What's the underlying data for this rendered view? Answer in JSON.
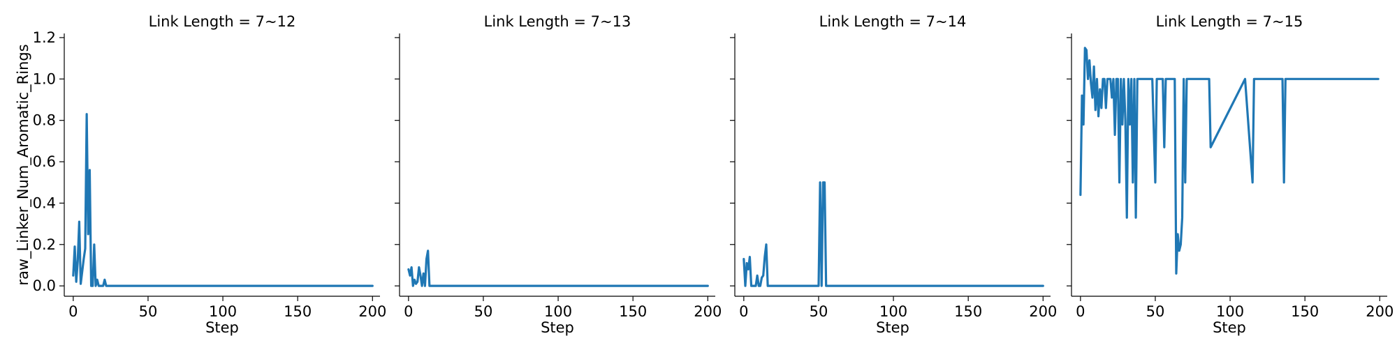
{
  "chart_data": {
    "type": "line",
    "ylabel": "raw_Linker_Num_Aromatic_Rings",
    "xlabel": "Step",
    "xlim": [
      -6,
      205
    ],
    "ylim": [
      -0.05,
      1.22
    ],
    "x_ticks": [
      0,
      50,
      100,
      150,
      200
    ],
    "y_ticks": [
      0.0,
      0.2,
      0.4,
      0.6,
      0.8,
      1.0,
      1.2
    ],
    "x_tick_labels": [
      "0",
      "50",
      "100",
      "150",
      "200"
    ],
    "y_tick_labels": [
      "0.0",
      "0.2",
      "0.4",
      "0.6",
      "0.8",
      "1.0",
      "1.2"
    ],
    "line_color": "#1f77b4",
    "grid": false,
    "legend": "none",
    "panels": [
      {
        "title": "Link Length = 7~12",
        "x": [
          0,
          1,
          2,
          3,
          4,
          5,
          6,
          7,
          8,
          9,
          10,
          11,
          12,
          13,
          14,
          15,
          16,
          17,
          18,
          19,
          20,
          21,
          22,
          23,
          24,
          25,
          26,
          200
        ],
        "y": [
          0.05,
          0.19,
          0.02,
          0.12,
          0.31,
          0.01,
          0.07,
          0.13,
          0.18,
          0.83,
          0.25,
          0.56,
          0.0,
          0.0,
          0.2,
          0.0,
          0.03,
          0.0,
          0.0,
          0.0,
          0.0,
          0.03,
          0.0,
          0.0,
          0.0,
          0.0,
          0.0,
          0.0
        ]
      },
      {
        "title": "Link Length = 7~13",
        "x": [
          0,
          1,
          2,
          3,
          4,
          5,
          6,
          7,
          8,
          9,
          10,
          11,
          12,
          13,
          14,
          15,
          200
        ],
        "y": [
          0.08,
          0.05,
          0.09,
          0.0,
          0.03,
          0.01,
          0.02,
          0.09,
          0.05,
          0.0,
          0.06,
          0.0,
          0.13,
          0.17,
          0.0,
          0.0,
          0.0
        ]
      },
      {
        "title": "Link Length = 7~14",
        "x": [
          0,
          1,
          2,
          3,
          4,
          5,
          6,
          7,
          8,
          9,
          10,
          11,
          12,
          13,
          14,
          15,
          16,
          17,
          50,
          51,
          52,
          53,
          54,
          55,
          200
        ],
        "y": [
          0.13,
          0.0,
          0.11,
          0.08,
          0.14,
          0.0,
          0.0,
          0.0,
          0.0,
          0.05,
          0.0,
          0.0,
          0.04,
          0.05,
          0.14,
          0.2,
          0.0,
          0.0,
          0.0,
          0.5,
          0.0,
          0.5,
          0.5,
          0.0,
          0.0
        ],
        "extra_note": ""
      },
      {
        "title": "Link Length = 7~15",
        "x": [
          0,
          1,
          2,
          3,
          4,
          5,
          6,
          7,
          8,
          9,
          10,
          11,
          12,
          13,
          14,
          15,
          16,
          17,
          18,
          19,
          20,
          21,
          22,
          23,
          24,
          25,
          26,
          27,
          28,
          29,
          30,
          31,
          32,
          33,
          34,
          35,
          36,
          37,
          38,
          39,
          40,
          41,
          45,
          48,
          50,
          51,
          52,
          53,
          55,
          56,
          57,
          60,
          63,
          64,
          65,
          66,
          67,
          68,
          69,
          70,
          71,
          80,
          86,
          87,
          110,
          115,
          116,
          135,
          136,
          137,
          199
        ],
        "y": [
          0.44,
          0.92,
          0.78,
          1.15,
          1.14,
          1.0,
          1.09,
          0.98,
          0.91,
          1.06,
          0.85,
          1.0,
          0.82,
          0.95,
          0.86,
          1.0,
          1.0,
          0.86,
          1.0,
          1.0,
          1.0,
          0.91,
          1.0,
          0.73,
          1.0,
          1.0,
          0.5,
          1.0,
          0.78,
          1.0,
          0.8,
          0.33,
          1.0,
          0.78,
          1.0,
          0.5,
          1.0,
          0.33,
          1.0,
          1.0,
          1.0,
          1.0,
          1.0,
          1.0,
          0.5,
          1.0,
          1.0,
          1.0,
          1.0,
          0.67,
          1.0,
          1.0,
          1.0,
          0.06,
          0.25,
          0.17,
          0.2,
          0.33,
          1.0,
          0.5,
          1.0,
          1.0,
          1.0,
          0.67,
          1.0,
          0.5,
          1.0,
          1.0,
          0.5,
          1.0,
          1.0
        ]
      }
    ]
  }
}
